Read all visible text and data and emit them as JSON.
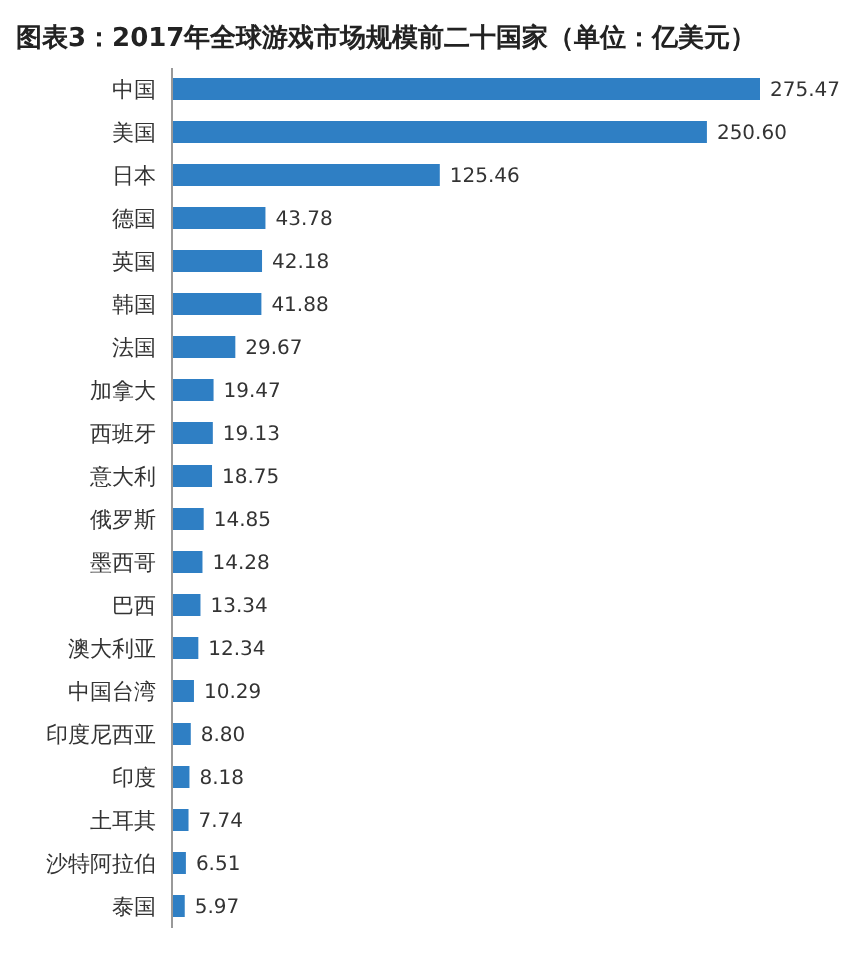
{
  "chart_data": {
    "type": "bar",
    "orientation": "horizontal",
    "title": "图表3：2017年全球游戏市场规模前二十国家（单位：亿美元）",
    "categories": [
      "中国",
      "美国",
      "日本",
      "德国",
      "英国",
      "韩国",
      "法国",
      "加拿大",
      "西班牙",
      "意大利",
      "俄罗斯",
      "墨西哥",
      "巴西",
      "澳大利亚",
      "中国台湾",
      "印度尼西亚",
      "印度",
      "土耳其",
      "沙特阿拉伯",
      "泰国"
    ],
    "values": [
      275.47,
      250.6,
      125.46,
      43.78,
      42.18,
      41.88,
      29.67,
      19.47,
      19.13,
      18.75,
      14.85,
      14.28,
      13.34,
      12.34,
      10.29,
      8.8,
      8.18,
      7.74,
      6.51,
      5.97
    ],
    "value_labels": [
      "275.47",
      "250.60",
      "125.46",
      "43.78",
      "42.18",
      "41.88",
      "29.67",
      "19.47",
      "19.13",
      "18.75",
      "14.85",
      "14.28",
      "13.34",
      "12.34",
      "10.29",
      "8.80",
      "8.18",
      "7.74",
      "6.51",
      "5.97"
    ],
    "color": "#2f7fc4",
    "grid": false,
    "legend": false
  }
}
